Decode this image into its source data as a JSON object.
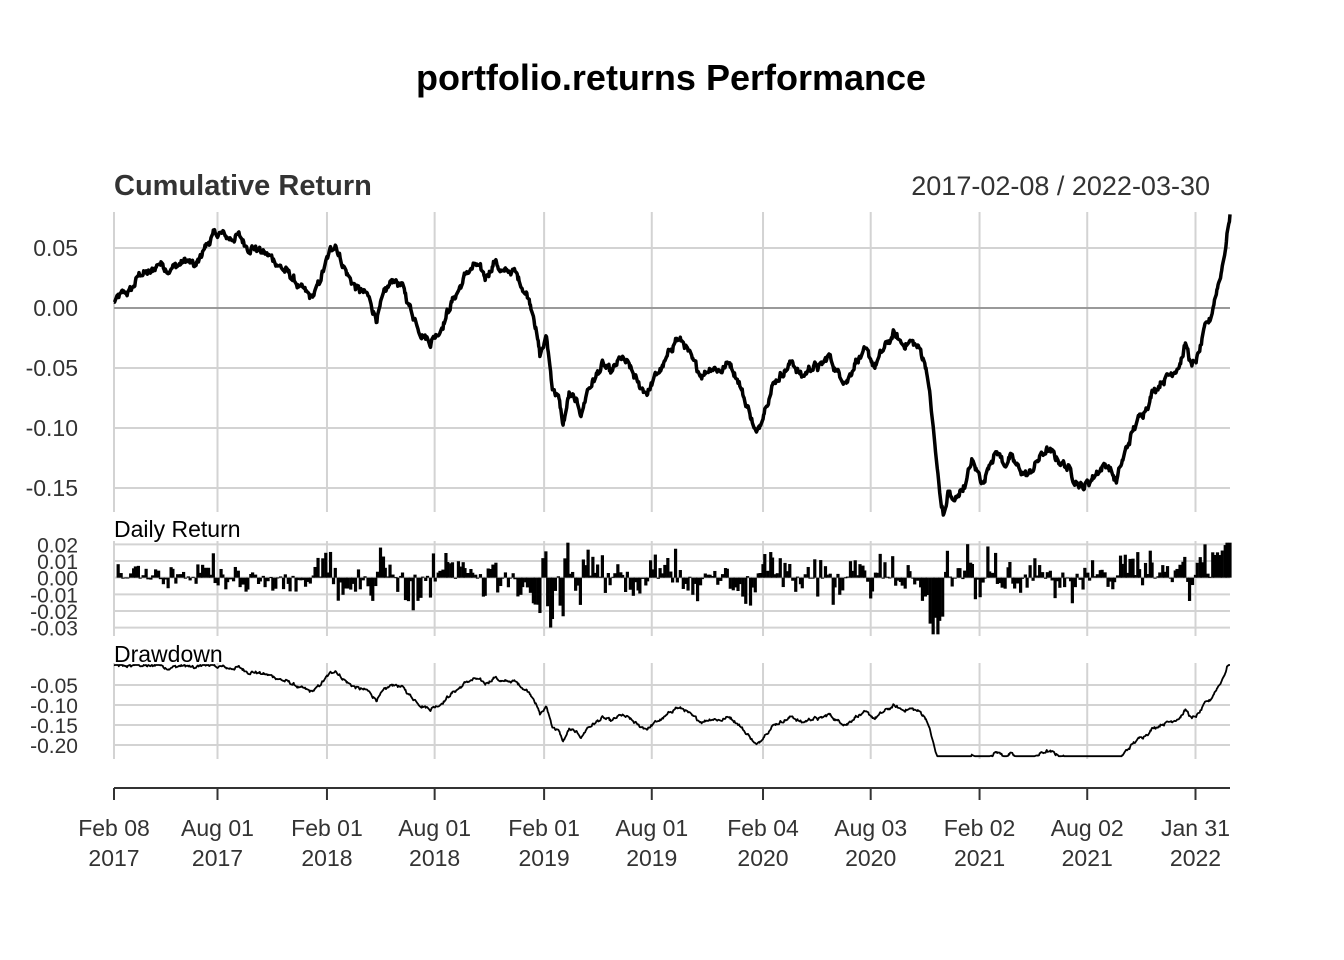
{
  "chart_data": {
    "type": "line",
    "title": "portfolio.returns Performance",
    "date_range": "2017-02-08 / 2022-03-30",
    "start_date": "2017-02-08",
    "end_date": "2022-03-30",
    "x_ticks": [
      {
        "date": "2017-02-08",
        "line1": "Feb 08",
        "line2": "2017"
      },
      {
        "date": "2017-08-01",
        "line1": "Aug 01",
        "line2": "2017"
      },
      {
        "date": "2018-02-01",
        "line1": "Feb 01",
        "line2": "2018"
      },
      {
        "date": "2018-08-01",
        "line1": "Aug 01",
        "line2": "2018"
      },
      {
        "date": "2019-02-01",
        "line1": "Feb 01",
        "line2": "2019"
      },
      {
        "date": "2019-08-01",
        "line1": "Aug 01",
        "line2": "2019"
      },
      {
        "date": "2020-02-04",
        "line1": "Feb 04",
        "line2": "2020"
      },
      {
        "date": "2020-08-03",
        "line1": "Aug 03",
        "line2": "2020"
      },
      {
        "date": "2021-02-02",
        "line1": "Feb 02",
        "line2": "2021"
      },
      {
        "date": "2021-08-02",
        "line1": "Aug 02",
        "line2": "2021"
      },
      {
        "date": "2022-01-31",
        "line1": "Jan 31",
        "line2": "2022"
      }
    ],
    "panels": {
      "cumulative": {
        "title": "Cumulative Return",
        "ylim": [
          -0.17,
          0.08
        ],
        "ticks": [
          0.05,
          0.0,
          -0.05,
          -0.1,
          -0.15
        ],
        "tick_labels": [
          "0.05",
          "0.00",
          "-0.05",
          "-0.10",
          "-0.15"
        ],
        "series": [
          [
            "2017-02-08",
            0.005
          ],
          [
            "2017-02-20",
            0.01
          ],
          [
            "2017-03-10",
            0.015
          ],
          [
            "2017-03-25",
            0.03
          ],
          [
            "2017-04-10",
            0.028
          ],
          [
            "2017-04-25",
            0.038
          ],
          [
            "2017-05-10",
            0.033
          ],
          [
            "2017-05-25",
            0.035
          ],
          [
            "2017-06-10",
            0.04
          ],
          [
            "2017-06-25",
            0.033
          ],
          [
            "2017-07-10",
            0.05
          ],
          [
            "2017-07-25",
            0.06
          ],
          [
            "2017-08-05",
            0.062
          ],
          [
            "2017-08-20",
            0.058
          ],
          [
            "2017-09-05",
            0.06
          ],
          [
            "2017-09-20",
            0.052
          ],
          [
            "2017-10-05",
            0.05
          ],
          [
            "2017-10-20",
            0.045
          ],
          [
            "2017-11-05",
            0.04
          ],
          [
            "2017-11-20",
            0.032
          ],
          [
            "2017-12-05",
            0.025
          ],
          [
            "2017-12-20",
            0.015
          ],
          [
            "2018-01-05",
            0.008
          ],
          [
            "2018-01-15",
            0.015
          ],
          [
            "2018-01-25",
            0.03
          ],
          [
            "2018-02-05",
            0.045
          ],
          [
            "2018-02-15",
            0.055
          ],
          [
            "2018-02-25",
            0.04
          ],
          [
            "2018-03-10",
            0.025
          ],
          [
            "2018-03-25",
            0.015
          ],
          [
            "2018-04-10",
            0.01
          ],
          [
            "2018-04-25",
            -0.008
          ],
          [
            "2018-05-10",
            0.012
          ],
          [
            "2018-05-25",
            0.025
          ],
          [
            "2018-06-10",
            0.015
          ],
          [
            "2018-06-25",
            -0.005
          ],
          [
            "2018-07-10",
            -0.02
          ],
          [
            "2018-07-25",
            -0.028
          ],
          [
            "2018-08-10",
            -0.018
          ],
          [
            "2018-08-25",
            0.0
          ],
          [
            "2018-09-10",
            0.015
          ],
          [
            "2018-09-25",
            0.03
          ],
          [
            "2018-10-10",
            0.035
          ],
          [
            "2018-10-25",
            0.025
          ],
          [
            "2018-11-10",
            0.04
          ],
          [
            "2018-11-25",
            0.028
          ],
          [
            "2018-12-10",
            0.032
          ],
          [
            "2018-12-25",
            0.02
          ],
          [
            "2019-01-05",
            0.01
          ],
          [
            "2019-01-15",
            -0.005
          ],
          [
            "2019-01-25",
            -0.04
          ],
          [
            "2019-02-05",
            -0.025
          ],
          [
            "2019-02-15",
            -0.065
          ],
          [
            "2019-02-25",
            -0.075
          ],
          [
            "2019-03-05",
            -0.098
          ],
          [
            "2019-03-15",
            -0.072
          ],
          [
            "2019-03-25",
            -0.078
          ],
          [
            "2019-04-05",
            -0.088
          ],
          [
            "2019-04-15",
            -0.068
          ],
          [
            "2019-04-25",
            -0.06
          ],
          [
            "2019-05-10",
            -0.048
          ],
          [
            "2019-05-25",
            -0.055
          ],
          [
            "2019-06-10",
            -0.042
          ],
          [
            "2019-06-25",
            -0.05
          ],
          [
            "2019-07-10",
            -0.065
          ],
          [
            "2019-07-25",
            -0.07
          ],
          [
            "2019-08-10",
            -0.055
          ],
          [
            "2019-08-25",
            -0.045
          ],
          [
            "2019-09-10",
            -0.025
          ],
          [
            "2019-09-25",
            -0.03
          ],
          [
            "2019-10-10",
            -0.048
          ],
          [
            "2019-10-25",
            -0.055
          ],
          [
            "2019-11-10",
            -0.048
          ],
          [
            "2019-11-25",
            -0.052
          ],
          [
            "2019-12-10",
            -0.045
          ],
          [
            "2019-12-25",
            -0.06
          ],
          [
            "2020-01-05",
            -0.078
          ],
          [
            "2020-01-15",
            -0.09
          ],
          [
            "2020-01-25",
            -0.108
          ],
          [
            "2020-02-05",
            -0.085
          ],
          [
            "2020-02-15",
            -0.07
          ],
          [
            "2020-02-25",
            -0.06
          ],
          [
            "2020-03-10",
            -0.052
          ],
          [
            "2020-03-25",
            -0.045
          ],
          [
            "2020-04-10",
            -0.058
          ],
          [
            "2020-04-25",
            -0.048
          ],
          [
            "2020-05-10",
            -0.05
          ],
          [
            "2020-05-25",
            -0.04
          ],
          [
            "2020-06-10",
            -0.055
          ],
          [
            "2020-06-25",
            -0.06
          ],
          [
            "2020-07-10",
            -0.042
          ],
          [
            "2020-07-25",
            -0.038
          ],
          [
            "2020-08-10",
            -0.048
          ],
          [
            "2020-08-25",
            -0.035
          ],
          [
            "2020-09-10",
            -0.022
          ],
          [
            "2020-09-25",
            -0.03
          ],
          [
            "2020-10-10",
            -0.028
          ],
          [
            "2020-10-25",
            -0.035
          ],
          [
            "2020-11-05",
            -0.05
          ],
          [
            "2020-11-12",
            -0.08
          ],
          [
            "2020-11-20",
            -0.12
          ],
          [
            "2020-11-28",
            -0.16
          ],
          [
            "2020-12-05",
            -0.175
          ],
          [
            "2020-12-12",
            -0.15
          ],
          [
            "2020-12-20",
            -0.165
          ],
          [
            "2020-12-28",
            -0.155
          ],
          [
            "2021-01-10",
            -0.145
          ],
          [
            "2021-01-20",
            -0.128
          ],
          [
            "2021-01-30",
            -0.138
          ],
          [
            "2021-02-10",
            -0.145
          ],
          [
            "2021-02-20",
            -0.125
          ],
          [
            "2021-03-05",
            -0.12
          ],
          [
            "2021-03-15",
            -0.13
          ],
          [
            "2021-03-25",
            -0.125
          ],
          [
            "2021-04-10",
            -0.135
          ],
          [
            "2021-04-25",
            -0.14
          ],
          [
            "2021-05-10",
            -0.128
          ],
          [
            "2021-05-25",
            -0.118
          ],
          [
            "2021-06-10",
            -0.125
          ],
          [
            "2021-06-25",
            -0.13
          ],
          [
            "2021-07-10",
            -0.14
          ],
          [
            "2021-07-25",
            -0.15
          ],
          [
            "2021-08-05",
            -0.145
          ],
          [
            "2021-08-20",
            -0.135
          ],
          [
            "2021-09-05",
            -0.13
          ],
          [
            "2021-09-20",
            -0.145
          ],
          [
            "2021-10-05",
            -0.12
          ],
          [
            "2021-10-20",
            -0.1
          ],
          [
            "2021-11-05",
            -0.085
          ],
          [
            "2021-11-20",
            -0.07
          ],
          [
            "2021-12-05",
            -0.06
          ],
          [
            "2021-12-20",
            -0.055
          ],
          [
            "2022-01-05",
            -0.045
          ],
          [
            "2022-01-15",
            -0.03
          ],
          [
            "2022-01-25",
            -0.05
          ],
          [
            "2022-02-05",
            -0.04
          ],
          [
            "2022-02-15",
            -0.02
          ],
          [
            "2022-02-25",
            -0.01
          ],
          [
            "2022-03-05",
            0.01
          ],
          [
            "2022-03-15",
            0.03
          ],
          [
            "2022-03-22",
            0.05
          ],
          [
            "2022-03-30",
            0.078
          ]
        ]
      },
      "daily": {
        "title": "Daily Return",
        "ylim": [
          -0.035,
          0.022
        ],
        "ticks": [
          0.02,
          0.01,
          0.0,
          -0.01,
          -0.02,
          -0.03
        ],
        "tick_labels": [
          "0.02",
          "0.01",
          "0.00",
          "-0.01",
          "-0.02",
          "-0.03"
        ]
      },
      "drawdown": {
        "title": "Drawdown",
        "ylim": [
          -0.235,
          0.005
        ],
        "ticks": [
          -0.05,
          -0.1,
          -0.15,
          -0.2
        ],
        "tick_labels": [
          "-0.05",
          "-0.10",
          "-0.15",
          "-0.20"
        ]
      }
    },
    "grid": true,
    "line_color": "#000000",
    "grid_color": "#d3d3d3",
    "zero_line_color": "#999999"
  }
}
